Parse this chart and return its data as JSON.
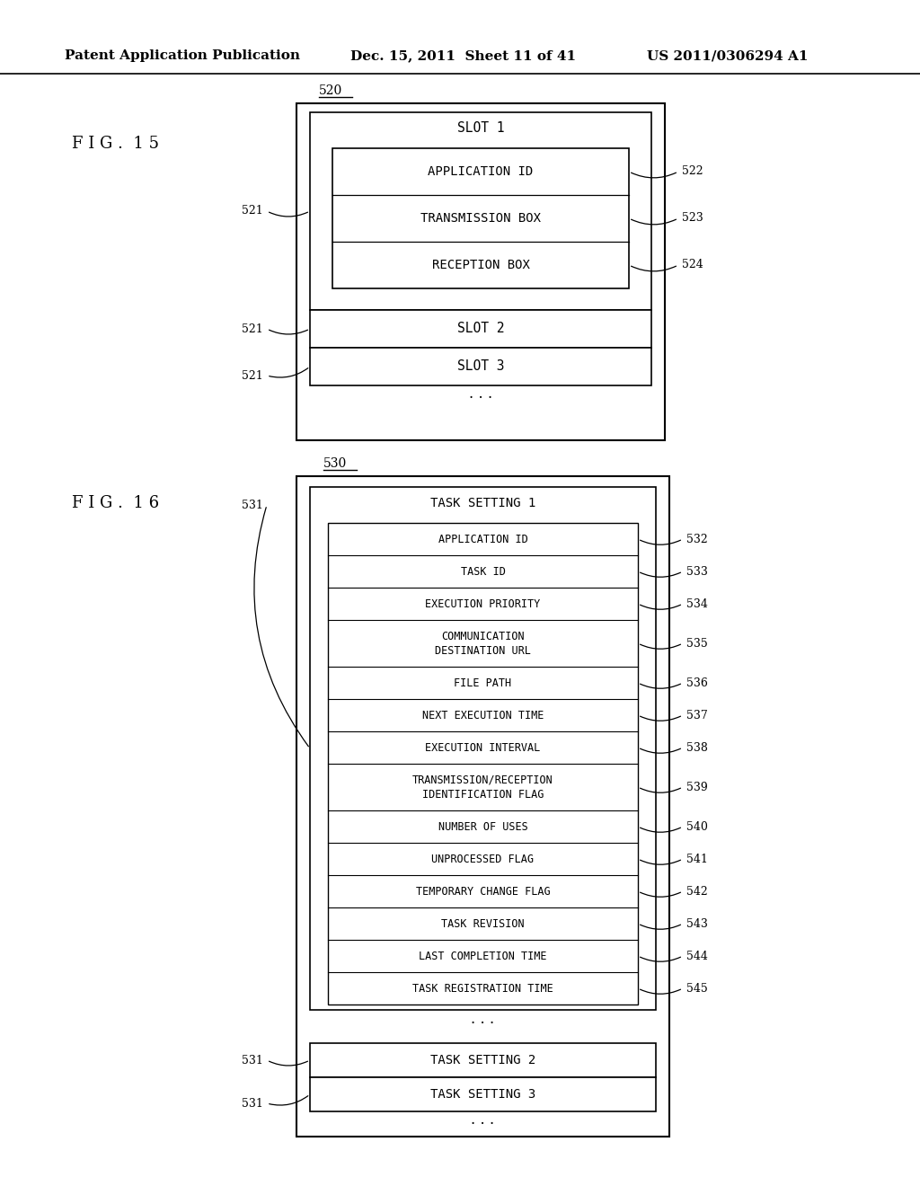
{
  "bg_color": "#ffffff",
  "header_text": "Patent Application Publication",
  "header_date": "Dec. 15, 2011  Sheet 11 of 41",
  "header_patent": "US 2011/0306294 A1",
  "fig15_label": "F I G .  1 5",
  "fig16_label": "F I G .  1 6",
  "fig15": {
    "outer_label": "520",
    "slot1_label": "521",
    "slot1_text": "SLOT 1",
    "inner_rows": [
      "APPLICATION ID",
      "TRANSMISSION BOX",
      "RECEPTION BOX"
    ],
    "inner_row_labels": [
      "522",
      "523",
      "524"
    ],
    "slot2_label": "521",
    "slot2_text": "SLOT 2",
    "slot3_label": "521",
    "slot3_text": "SLOT 3"
  },
  "fig16": {
    "outer_label": "530",
    "task_setting1_label": "531",
    "task_setting1_text": "TASK SETTING 1",
    "inner_rows": [
      "APPLICATION ID",
      "TASK ID",
      "EXECUTION PRIORITY",
      "COMMUNICATION\nDESTINATION URL",
      "FILE PATH",
      "NEXT EXECUTION TIME",
      "EXECUTION INTERVAL",
      "TRANSMISSION/RECEPTION\nIDENTIFICATION FLAG",
      "NUMBER OF USES",
      "UNPROCESSED FLAG",
      "TEMPORARY CHANGE FLAG",
      "TASK REVISION",
      "LAST COMPLETION TIME",
      "TASK REGISTRATION TIME"
    ],
    "inner_row_labels": [
      "532",
      "533",
      "534",
      "535",
      "536",
      "537",
      "538",
      "539",
      "540",
      "541",
      "542",
      "543",
      "544",
      "545"
    ],
    "task_setting2_label": "531",
    "task_setting2_text": "TASK SETTING 2",
    "task_setting3_label": "531",
    "task_setting3_text": "TASK SETTING 3"
  }
}
